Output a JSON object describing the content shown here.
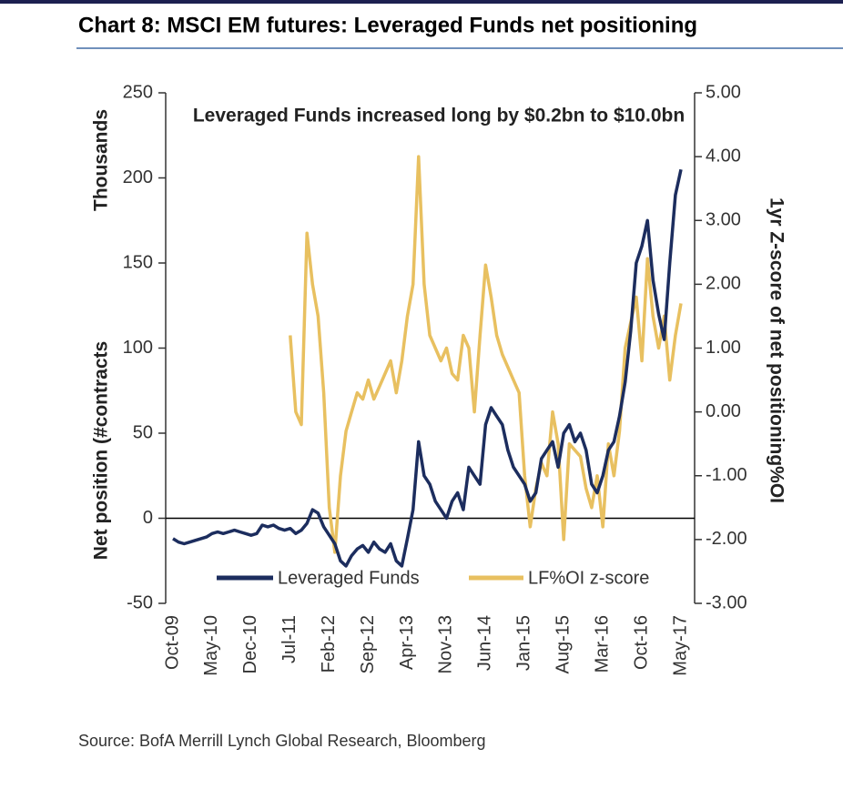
{
  "chart_data": {
    "type": "line",
    "title": "Chart 8: MSCI EM futures: Leveraged Funds net positioning",
    "annotation": "Leveraged Funds increased long by $0.2bn to $10.0bn",
    "y_label": "Net position (#contracts",
    "y_unit_label": "Thousands",
    "y2_label": "1yr Z-score of net positioning%OI",
    "source": "Source: BofA Merrill Lynch Global Research, Bloomberg",
    "legend": "bottom",
    "categories": [
      "Oct-09",
      null,
      null,
      null,
      null,
      null,
      null,
      "May-10",
      null,
      null,
      null,
      null,
      null,
      null,
      "Dec-10",
      null,
      null,
      null,
      null,
      null,
      null,
      "Jul-11",
      null,
      null,
      null,
      null,
      null,
      null,
      "Feb-12",
      null,
      null,
      null,
      null,
      null,
      null,
      "Sep-12",
      null,
      null,
      null,
      null,
      null,
      null,
      "Apr-13",
      null,
      null,
      null,
      null,
      null,
      null,
      "Nov-13",
      null,
      null,
      null,
      null,
      null,
      null,
      "Jun-14",
      null,
      null,
      null,
      null,
      null,
      null,
      "Jan-15",
      null,
      null,
      null,
      null,
      null,
      null,
      "Aug-15",
      null,
      null,
      null,
      null,
      null,
      null,
      "Mar-16",
      null,
      null,
      null,
      null,
      null,
      null,
      "Oct-16",
      null,
      null,
      null,
      null,
      null,
      null,
      "May-17"
    ],
    "ylim": [
      -50,
      250
    ],
    "yticks": [
      -50,
      0,
      50,
      100,
      150,
      200,
      250
    ],
    "y2lim": [
      -3,
      5
    ],
    "y2ticks": [
      {
        "value": -3,
        "label": "-3.00"
      },
      {
        "value": -2,
        "label": "-2.00"
      },
      {
        "value": -1,
        "label": "-1.00"
      },
      {
        "value": 0,
        "label": "0.00"
      },
      {
        "value": 1,
        "label": "1.00"
      },
      {
        "value": 2,
        "label": "2.00"
      },
      {
        "value": 3,
        "label": "3.00"
      },
      {
        "value": 4,
        "label": "4.00"
      },
      {
        "value": 5,
        "label": "5.00"
      }
    ],
    "series": [
      {
        "name": "Leveraged Funds",
        "color": "#1c2d5e",
        "values": [
          -12,
          -14,
          -15,
          -14,
          -13,
          -12,
          -11,
          -9,
          -8,
          -9,
          -8,
          -7,
          -8,
          -9,
          -10,
          -9,
          -4,
          -5,
          -4,
          -6,
          -7,
          -6,
          -9,
          -7,
          -3,
          5,
          3,
          -5,
          -10,
          -15,
          -25,
          -28,
          -22,
          -18,
          -16,
          -20,
          -14,
          -18,
          -20,
          -15,
          -25,
          -28,
          -12,
          5,
          45,
          25,
          20,
          10,
          5,
          0,
          10,
          15,
          5,
          30,
          25,
          20,
          55,
          65,
          60,
          55,
          40,
          30,
          25,
          20,
          10,
          15,
          35,
          40,
          45,
          30,
          50,
          55,
          45,
          50,
          40,
          20,
          15,
          25,
          40,
          45,
          60,
          80,
          110,
          150,
          160,
          175,
          140,
          120,
          105,
          150,
          190,
          205
        ]
      },
      {
        "name": "LF%OI z-score",
        "color": "#e8c060",
        "axis": "y2",
        "values": [
          null,
          null,
          null,
          null,
          null,
          null,
          null,
          null,
          null,
          null,
          null,
          null,
          null,
          null,
          null,
          null,
          null,
          null,
          null,
          null,
          null,
          1.2,
          0.0,
          -0.2,
          2.8,
          2.0,
          1.5,
          0.3,
          -1.5,
          -2.2,
          -1.0,
          -0.3,
          0.0,
          0.3,
          0.2,
          0.5,
          0.2,
          0.4,
          0.6,
          0.8,
          0.3,
          0.8,
          1.5,
          2.0,
          4.0,
          2.0,
          1.2,
          1.0,
          0.8,
          1.0,
          0.6,
          0.5,
          1.2,
          1.0,
          0.0,
          1.2,
          2.3,
          1.8,
          1.2,
          0.9,
          0.7,
          0.5,
          0.3,
          -1.0,
          -1.8,
          -1.2,
          -0.8,
          -1.0,
          0.0,
          -0.5,
          -2.0,
          -0.5,
          -0.6,
          -0.7,
          -1.2,
          -1.5,
          -1.0,
          -1.8,
          -0.5,
          -1.0,
          -0.3,
          1.0,
          1.4,
          1.8,
          0.8,
          2.4,
          1.5,
          1.0,
          1.5,
          0.5,
          1.2,
          1.7
        ]
      }
    ]
  }
}
